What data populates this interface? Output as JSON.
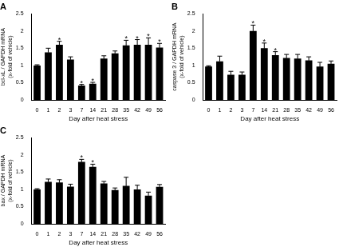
{
  "chart_data": [
    {
      "type": "bar",
      "title": "A",
      "xlabel": "Day after heat stress",
      "ylabel": [
        "bcl-xL / GAPDH mRNA",
        "(x-fold of vehicle)"
      ],
      "categories": [
        "0",
        "1",
        "2",
        "3",
        "7",
        "14",
        "21",
        "28",
        "35",
        "42",
        "49",
        "56"
      ],
      "values": [
        1.0,
        1.38,
        1.6,
        1.17,
        0.42,
        0.47,
        1.2,
        1.35,
        1.58,
        1.6,
        1.6,
        1.52
      ],
      "errors": [
        0.02,
        0.12,
        0.1,
        0.08,
        0.03,
        0.04,
        0.08,
        0.07,
        0.15,
        0.15,
        0.2,
        0.12
      ],
      "annotations": [
        {
          "category": "2",
          "text": "*"
        },
        {
          "category": "7",
          "text": "*"
        },
        {
          "category": "14",
          "text": "*"
        },
        {
          "category": "35",
          "text": "*"
        },
        {
          "category": "42",
          "text": "*"
        },
        {
          "category": "49",
          "text": "*"
        },
        {
          "category": "56",
          "text": "*"
        }
      ],
      "color": "#000000",
      "ylim": [
        0,
        2.5
      ],
      "yticks": [
        0,
        0.5,
        1,
        1.5,
        2,
        2.5
      ],
      "grid": false
    },
    {
      "type": "bar",
      "title": "B",
      "xlabel": "Day after heat stress",
      "ylabel": [
        "caspase 3 / GAPDH mRNA",
        "(x-fold of vehicle)"
      ],
      "categories": [
        "0",
        "1",
        "2",
        "3",
        "7",
        "14",
        "21",
        "28",
        "35",
        "42",
        "49",
        "56"
      ],
      "values": [
        0.97,
        1.12,
        0.73,
        0.73,
        2.0,
        1.5,
        1.3,
        1.22,
        1.2,
        1.15,
        0.97,
        1.05
      ],
      "errors": [
        0.02,
        0.15,
        0.1,
        0.08,
        0.17,
        0.15,
        0.1,
        0.1,
        0.12,
        0.1,
        0.12,
        0.08
      ],
      "annotations": [
        {
          "category": "7",
          "text": "*"
        },
        {
          "category": "14",
          "text": "*"
        },
        {
          "category": "21",
          "text": "*"
        }
      ],
      "color": "#000000",
      "ylim": [
        0,
        2.5
      ],
      "yticks": [
        0,
        0.5,
        1,
        1.5,
        2,
        2.5
      ],
      "grid": false
    },
    {
      "type": "bar",
      "title": "C",
      "xlabel": "Day after heat stress",
      "ylabel": [
        "bax / GAPDH mRNA",
        "(x-fold of vehicle)"
      ],
      "categories": [
        "0",
        "1",
        "2",
        "3",
        "7",
        "14",
        "21",
        "28",
        "35",
        "42",
        "49",
        "56"
      ],
      "values": [
        1.0,
        1.22,
        1.2,
        1.08,
        1.8,
        1.65,
        1.17,
        0.98,
        1.1,
        1.0,
        0.82,
        1.07
      ],
      "errors": [
        0.02,
        0.08,
        0.08,
        0.07,
        0.07,
        0.08,
        0.06,
        0.06,
        0.25,
        0.12,
        0.1,
        0.07
      ],
      "annotations": [
        {
          "category": "7",
          "text": "*"
        },
        {
          "category": "14",
          "text": "*"
        }
      ],
      "color": "#000000",
      "ylim": [
        0,
        2.5
      ],
      "yticks": [
        0,
        0.5,
        1,
        1.5,
        2,
        2.5
      ],
      "grid": false
    }
  ]
}
